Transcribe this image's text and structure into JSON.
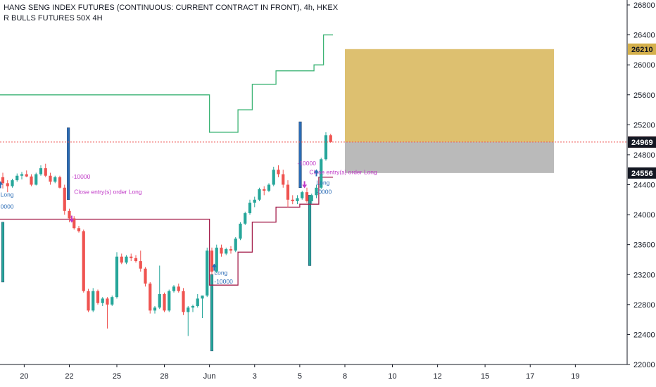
{
  "title": "HANG SENG INDEX FUTURES (CONTINUOUS: CURRENT CONTRACT IN FRONT), 4h, HKEX",
  "indicator": "R BULLS FUTURES 50X 4H",
  "colors": {
    "up": "#26a69a",
    "down": "#ef5350",
    "upper_band": "#3bb374",
    "lower_band": "#a5204d",
    "signal_text": "#c03ac7",
    "long_signal": "#2a6bb5",
    "profit_zone": "#d4b04c",
    "loss_zone": "#a9a9a9",
    "last_price": "#ef5350"
  },
  "chart_data": {
    "type": "candlestick",
    "ylim": [
      22000,
      26800
    ],
    "y_ticks": [
      22000,
      22400,
      22800,
      23200,
      23600,
      24000,
      24400,
      24800,
      25200,
      25600,
      26000,
      26400,
      26800
    ],
    "x_ticks": [
      "20",
      "22",
      "25",
      "28",
      "Jun",
      "3",
      "5",
      "8",
      "10",
      "12",
      "15",
      "17",
      "19"
    ],
    "x_tick_index": [
      4.5,
      14,
      24,
      34,
      43.5,
      53,
      62.5,
      72,
      82,
      91.5,
      101.5,
      111,
      120.5
    ],
    "candles": [
      [
        24500,
        24560,
        24350,
        24420
      ],
      [
        24420,
        24460,
        24300,
        24380
      ],
      [
        24380,
        24480,
        24360,
        24460
      ],
      [
        24460,
        24550,
        24440,
        24520
      ],
      [
        24520,
        24570,
        24470,
        24540
      ],
      [
        24540,
        24590,
        24500,
        24510
      ],
      [
        24510,
        24540,
        24380,
        24400
      ],
      [
        24400,
        24560,
        24390,
        24540
      ],
      [
        24540,
        24660,
        24520,
        24620
      ],
      [
        24620,
        24680,
        24500,
        24520
      ],
      [
        24520,
        24560,
        24400,
        24440
      ],
      [
        24440,
        24520,
        24420,
        24500
      ],
      [
        24500,
        24520,
        24350,
        24360
      ],
      [
        24360,
        24400,
        24000,
        24050
      ],
      [
        24050,
        24080,
        23900,
        23950
      ],
      [
        23950,
        23980,
        23800,
        23820
      ],
      [
        23820,
        23850,
        23760,
        23780
      ],
      [
        23780,
        23800,
        22960,
        22980
      ],
      [
        22980,
        23010,
        22700,
        22720
      ],
      [
        22720,
        23020,
        22700,
        22980
      ],
      [
        22980,
        23000,
        22800,
        22820
      ],
      [
        22820,
        22900,
        22780,
        22880
      ],
      [
        22880,
        22900,
        22480,
        22800
      ],
      [
        22800,
        22920,
        22780,
        22900
      ],
      [
        22900,
        23500,
        22880,
        23440
      ],
      [
        23440,
        23480,
        23340,
        23360
      ],
      [
        23360,
        23460,
        23340,
        23440
      ],
      [
        23440,
        23480,
        23380,
        23420
      ],
      [
        23420,
        23460,
        23360,
        23380
      ],
      [
        23380,
        23520,
        23240,
        23280
      ],
      [
        23280,
        23300,
        23040,
        23080
      ],
      [
        23080,
        23100,
        22680,
        22720
      ],
      [
        22720,
        22780,
        22680,
        22760
      ],
      [
        22760,
        23320,
        22740,
        22940
      ],
      [
        22940,
        22960,
        22700,
        22720
      ],
      [
        22720,
        23000,
        22700,
        22980
      ],
      [
        22980,
        23060,
        22960,
        23040
      ],
      [
        23040,
        23080,
        22960,
        22980
      ],
      [
        22980,
        23020,
        22660,
        22700
      ],
      [
        22700,
        22780,
        22380,
        22760
      ],
      [
        22760,
        22800,
        22700,
        22780
      ],
      [
        22780,
        22940,
        22760,
        22880
      ],
      [
        22880,
        22920,
        22620,
        22920
      ],
      [
        22920,
        23560,
        22900,
        23520
      ],
      [
        23520,
        23560,
        23200,
        23240
      ],
      [
        23240,
        23600,
        23220,
        23560
      ],
      [
        23560,
        23600,
        23440,
        23480
      ],
      [
        23480,
        23560,
        23460,
        23540
      ],
      [
        23540,
        23580,
        23480,
        23520
      ],
      [
        23520,
        23700,
        23500,
        23680
      ],
      [
        23680,
        23900,
        23660,
        23880
      ],
      [
        23880,
        24040,
        23860,
        24020
      ],
      [
        24020,
        24200,
        24000,
        24160
      ],
      [
        24160,
        24240,
        24100,
        24200
      ],
      [
        24200,
        24360,
        24180,
        24340
      ],
      [
        24340,
        24380,
        24260,
        24320
      ],
      [
        24320,
        24420,
        24300,
        24400
      ],
      [
        24400,
        24640,
        24380,
        24600
      ],
      [
        24600,
        24660,
        24500,
        24540
      ],
      [
        24540,
        24600,
        24360,
        24400
      ],
      [
        24400,
        24460,
        24100,
        24200
      ],
      [
        24200,
        24260,
        24140,
        24180
      ],
      [
        24180,
        24260,
        24140,
        24220
      ],
      [
        24220,
        24320,
        24200,
        24300
      ],
      [
        24300,
        24360,
        24160,
        24180
      ],
      [
        24180,
        24280,
        24140,
        24260
      ],
      [
        24260,
        24400,
        24220,
        24360
      ],
      [
        24360,
        24760,
        24340,
        24740
      ],
      [
        24740,
        25100,
        24720,
        25060
      ],
      [
        25060,
        25080,
        24960,
        24970
      ]
    ],
    "upper_band": [
      25600,
      25600,
      25600,
      25600,
      25600,
      25600,
      25600,
      25600,
      25600,
      25600,
      25600,
      25600,
      25600,
      25600,
      25600,
      25600,
      25600,
      25600,
      25600,
      25600,
      25600,
      25600,
      25600,
      25600,
      25600,
      25600,
      25600,
      25600,
      25600,
      25600,
      25600,
      25600,
      25600,
      25600,
      25600,
      25600,
      25600,
      25600,
      25600,
      25600,
      25600,
      25600,
      25600,
      25600,
      25100,
      25100,
      25100,
      25100,
      25100,
      25100,
      25400,
      25400,
      25400,
      25740,
      25740,
      25740,
      25740,
      25740,
      25920,
      25920,
      25920,
      25920,
      25920,
      25920,
      25920,
      25920,
      26000,
      26000,
      26400,
      26400
    ],
    "lower_band": [
      23940,
      23940,
      23940,
      23940,
      23940,
      23940,
      23940,
      23940,
      23940,
      23940,
      23940,
      23940,
      23940,
      23940,
      23940,
      23940,
      23940,
      23940,
      23940,
      23940,
      23940,
      23940,
      23940,
      23940,
      23940,
      23940,
      23940,
      23940,
      23940,
      23940,
      23940,
      23940,
      23940,
      23940,
      23940,
      23940,
      23940,
      23940,
      23940,
      23940,
      23940,
      23940,
      23940,
      23940,
      23060,
      23060,
      23060,
      23060,
      23060,
      23060,
      23500,
      23500,
      23500,
      23900,
      23900,
      23900,
      23900,
      23900,
      24100,
      24100,
      24100,
      24100,
      24100,
      24140,
      24140,
      24140,
      24140,
      24500,
      24500,
      24500
    ],
    "position": {
      "entry": 24969,
      "target": 26210,
      "stop": 24556,
      "start_index": 72,
      "end_index": 116
    },
    "price_tags": [
      {
        "value": 26210,
        "label": "26210",
        "bg": "#d4b04c",
        "fg": "#131722"
      },
      {
        "value": 24970,
        "label": "24970",
        "bg": "#ef5350",
        "fg": "#ffffff"
      },
      {
        "value": 24969,
        "label": "24969",
        "bg": "#131722",
        "fg": "#ffffff"
      },
      {
        "value": 24556,
        "label": "24556",
        "bg": "#131722",
        "fg": "#ffffff"
      }
    ],
    "signals": [
      {
        "index": -0.5,
        "price": 24240,
        "label": "Long",
        "kind": "long"
      },
      {
        "index": -0.5,
        "price": 24080,
        "label": "0000",
        "kind": "long"
      },
      {
        "index": 14.5,
        "price": 24480,
        "label": "-10000",
        "kind": "close"
      },
      {
        "index": 15,
        "price": 24280,
        "label": "Close entry(s) order Long",
        "kind": "close"
      },
      {
        "index": 44.5,
        "price": 23200,
        "label": "Long",
        "kind": "long"
      },
      {
        "index": 44.5,
        "price": 23080,
        "label": "-10000",
        "kind": "long"
      },
      {
        "index": 62,
        "price": 24660,
        "label": "-10000",
        "kind": "close"
      },
      {
        "index": 64.5,
        "price": 24540,
        "label": "Close entry(s) order Long",
        "kind": "close"
      },
      {
        "index": 66,
        "price": 24400,
        "label": "Long",
        "kind": "long"
      },
      {
        "index": 66,
        "price": 24280,
        "label": "-0000",
        "kind": "long"
      }
    ],
    "spikes": [
      {
        "index": 13.8,
        "from": 24200,
        "to": 25160,
        "color": "#2a6bb5"
      },
      {
        "index": 0,
        "from": 23900,
        "to": 23100,
        "color": "#26a69a"
      },
      {
        "index": 44,
        "from": 23200,
        "to": 22180,
        "color": "#26a69a"
      },
      {
        "index": 62.6,
        "from": 24360,
        "to": 25240,
        "color": "#2a6bb5"
      },
      {
        "index": 64.6,
        "from": 24260,
        "to": 23320,
        "color": "#26a69a"
      }
    ]
  }
}
